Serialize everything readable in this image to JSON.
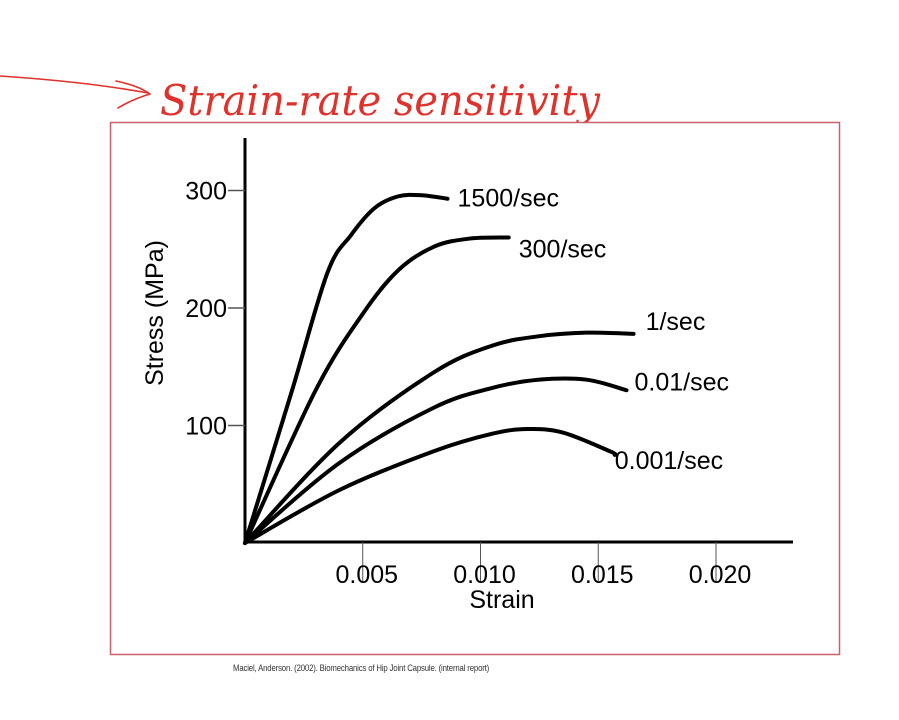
{
  "annotation": {
    "title": "Strain-rate sensitivity",
    "color": "#e0312b",
    "arrow": "arrow-right"
  },
  "frame": {
    "border_color": "#c9606b"
  },
  "caption": "Maciel, Anderson. (2002). Biomechanics of Hip Joint Capsule. (internal report)",
  "chart_data": {
    "type": "line",
    "title": "",
    "xlabel": "Strain",
    "ylabel": "Stress (MPa)",
    "xlim": [
      0,
      0.023
    ],
    "ylim": [
      0,
      340
    ],
    "xticks": [
      "0.005",
      "0.010",
      "0.015",
      "0.020"
    ],
    "yticks": [
      "100",
      "200",
      "300"
    ],
    "grid": false,
    "legend_position": "inline labels at curve ends",
    "series": [
      {
        "name": "1500/sec",
        "x": [
          0,
          0.002,
          0.0035,
          0.0045,
          0.0055,
          0.0065,
          0.0075,
          0.0086
        ],
        "y": [
          0,
          130,
          230,
          262,
          285,
          295,
          296,
          293
        ]
      },
      {
        "name": "300/sec",
        "x": [
          0,
          0.003,
          0.005,
          0.0065,
          0.008,
          0.0095,
          0.0112
        ],
        "y": [
          0,
          130,
          195,
          232,
          252,
          259,
          260
        ]
      },
      {
        "name": "1/sec",
        "x": [
          0,
          0.004,
          0.008,
          0.0105,
          0.0125,
          0.0145,
          0.0165
        ],
        "y": [
          0,
          85,
          145,
          168,
          176,
          179,
          178
        ]
      },
      {
        "name": "0.01/sec",
        "x": [
          0,
          0.004,
          0.008,
          0.0105,
          0.0125,
          0.0145,
          0.0162
        ],
        "y": [
          0,
          68,
          115,
          132,
          139,
          139,
          130
        ]
      },
      {
        "name": "0.001/sec",
        "x": [
          0,
          0.004,
          0.008,
          0.0105,
          0.012,
          0.0135,
          0.0155,
          0.0157
        ],
        "y": [
          0,
          45,
          78,
          93,
          97,
          94,
          78,
          75
        ]
      }
    ]
  }
}
